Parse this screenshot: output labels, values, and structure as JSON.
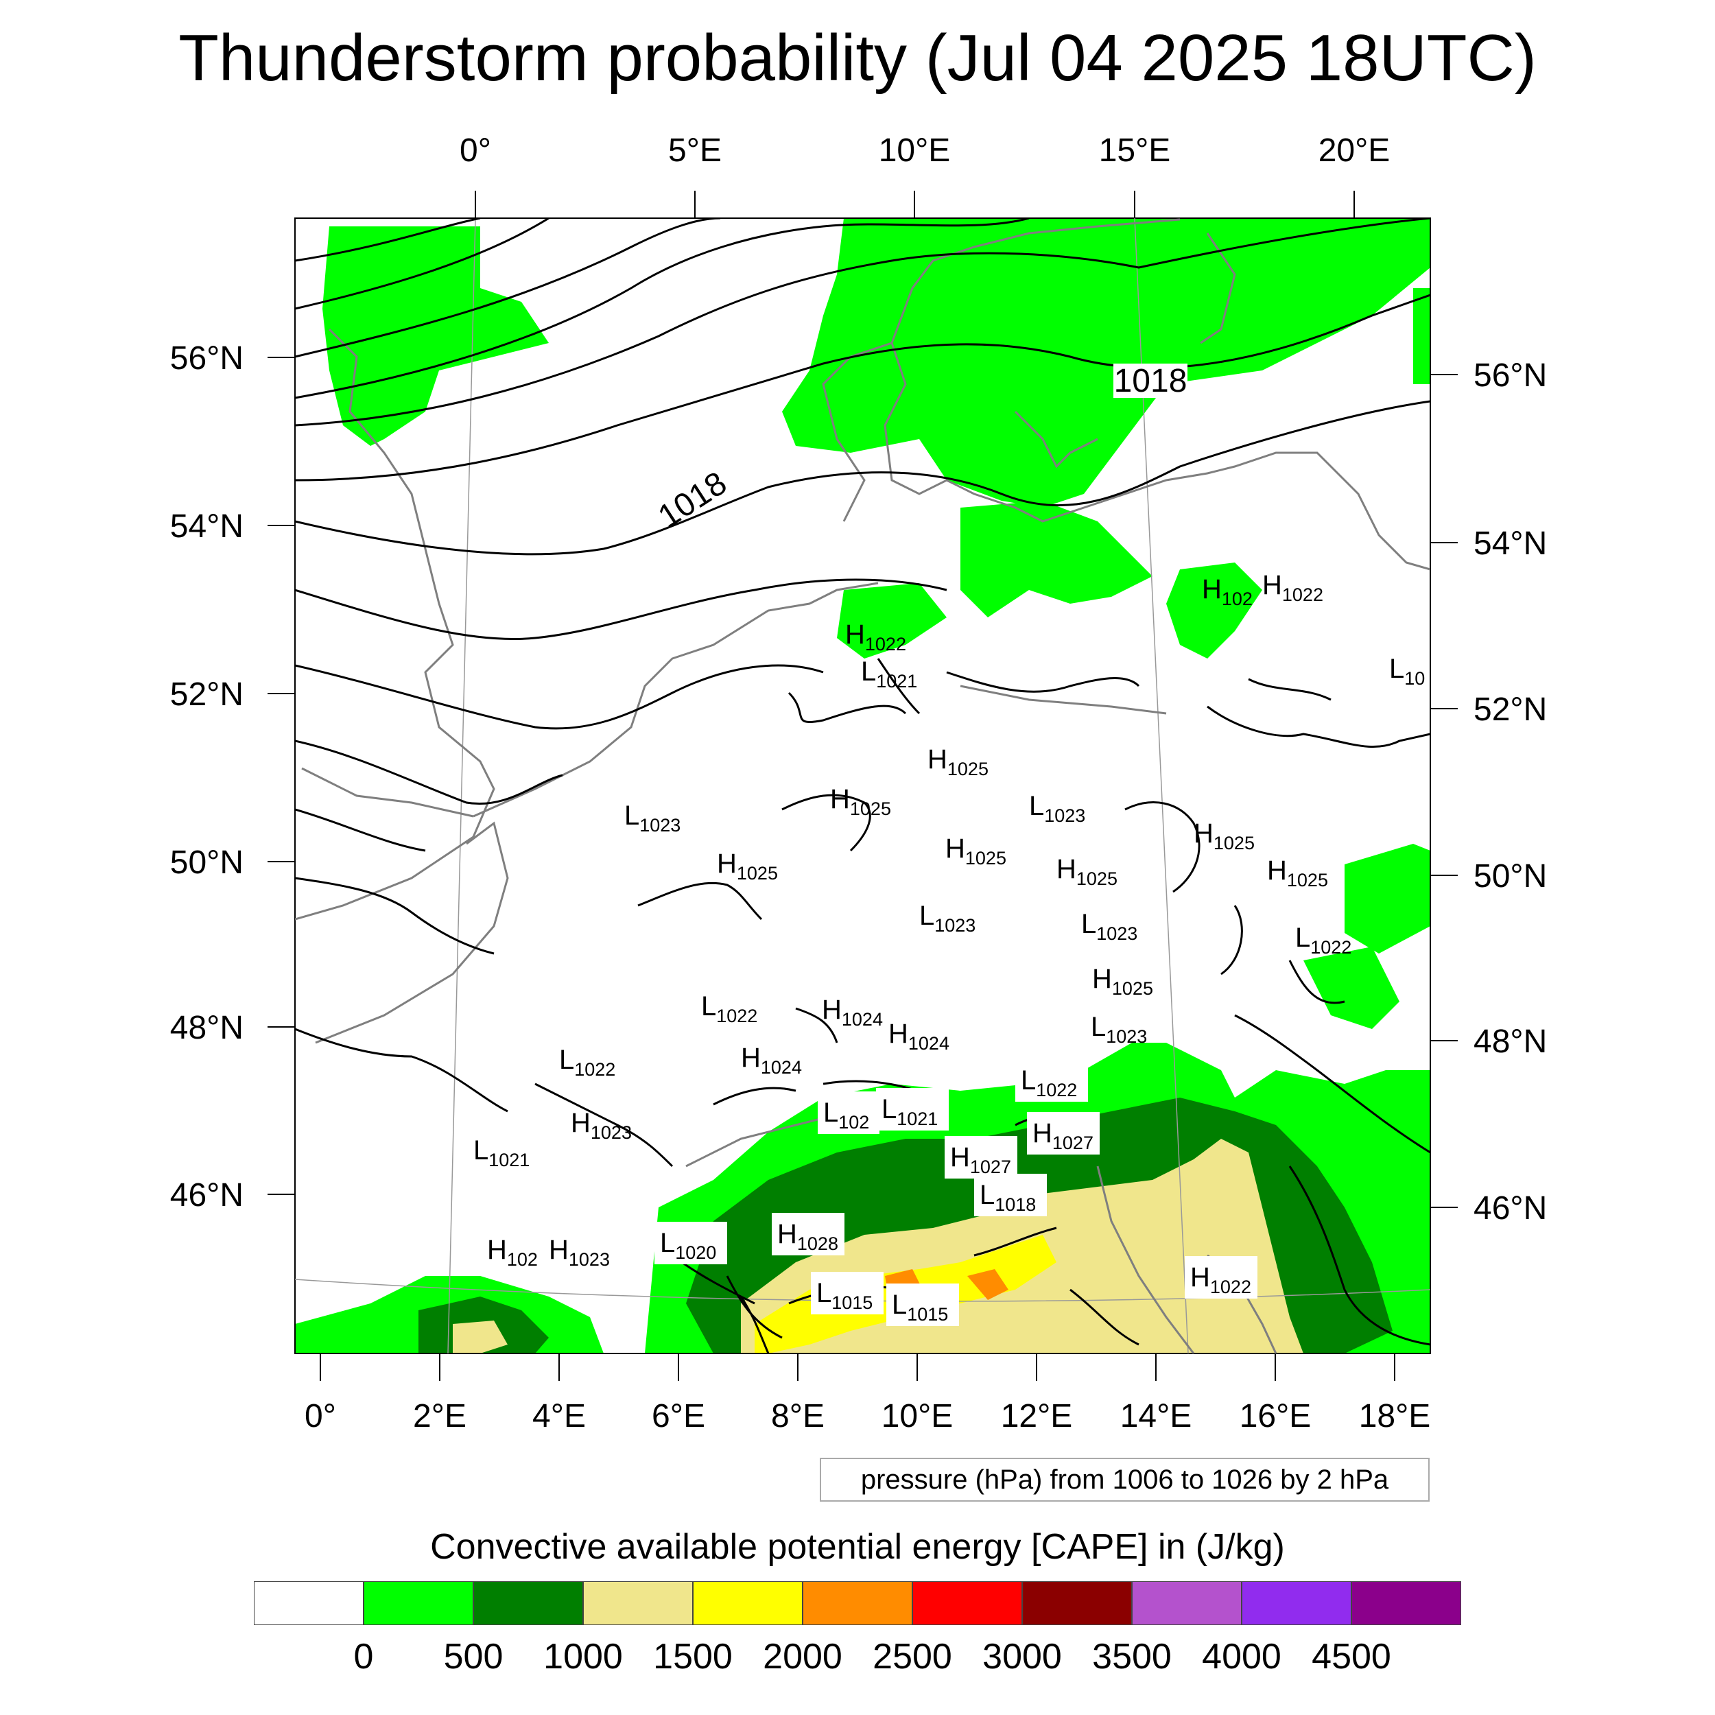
{
  "title": "Thunderstorm probability (Jul 04 2025 18UTC)",
  "map": {
    "projection": "lambert-conformal",
    "base_fill": "#ffffff",
    "top_lon_labels": [
      "0°",
      "5°E",
      "10°E",
      "15°E",
      "20°E"
    ],
    "bottom_lon_labels": [
      "0°",
      "2°E",
      "4°E",
      "6°E",
      "8°E",
      "10°E",
      "12°E",
      "14°E",
      "16°E",
      "18°E"
    ],
    "left_lat_labels": [
      "56°N",
      "54°N",
      "52°N",
      "50°N",
      "48°N",
      "46°N"
    ],
    "right_lat_labels": [
      "56°N",
      "54°N",
      "52°N",
      "50°N",
      "48°N",
      "46°N"
    ],
    "isobar_labels": [
      "1018",
      "1018"
    ],
    "pressure_centers": [
      {
        "type": "H",
        "value": "1022"
      },
      {
        "type": "L",
        "value": "1021"
      },
      {
        "type": "H",
        "value": "102"
      },
      {
        "type": "H",
        "value": "1022"
      },
      {
        "type": "L",
        "value": "10"
      },
      {
        "type": "H",
        "value": "1025"
      },
      {
        "type": "H",
        "value": "1025"
      },
      {
        "type": "L",
        "value": "1023"
      },
      {
        "type": "L",
        "value": "1023"
      },
      {
        "type": "H",
        "value": "1025"
      },
      {
        "type": "H",
        "value": "1025"
      },
      {
        "type": "H",
        "value": "1025"
      },
      {
        "type": "H",
        "value": "1025"
      },
      {
        "type": "H",
        "value": "1025"
      },
      {
        "type": "L",
        "value": "1023"
      },
      {
        "type": "L",
        "value": "1023"
      },
      {
        "type": "L",
        "value": "1022"
      },
      {
        "type": "H",
        "value": "1025"
      },
      {
        "type": "L",
        "value": "1022"
      },
      {
        "type": "H",
        "value": "1024"
      },
      {
        "type": "H",
        "value": "1024"
      },
      {
        "type": "L",
        "value": "1023"
      },
      {
        "type": "L",
        "value": "1022"
      },
      {
        "type": "H",
        "value": "1024"
      },
      {
        "type": "L",
        "value": "1022"
      },
      {
        "type": "L",
        "value": "102"
      },
      {
        "type": "L",
        "value": "1021"
      },
      {
        "type": "H",
        "value": "1023"
      },
      {
        "type": "H",
        "value": "1027"
      },
      {
        "type": "L",
        "value": "1021"
      },
      {
        "type": "H",
        "value": "1027"
      },
      {
        "type": "L",
        "value": "1018"
      },
      {
        "type": "H",
        "value": "102"
      },
      {
        "type": "H",
        "value": "1023"
      },
      {
        "type": "L",
        "value": "1020"
      },
      {
        "type": "H",
        "value": "1028"
      },
      {
        "type": "L",
        "value": "1015"
      },
      {
        "type": "L",
        "value": "1015"
      },
      {
        "type": "H",
        "value": "1022"
      }
    ]
  },
  "contour_note": "pressure (hPa) from 1006 to 1026 by 2 hPa",
  "colorbar": {
    "title": "Convective available potential energy [CAPE] in (J/kg)",
    "colors": [
      "#ffffff",
      "#00ff00",
      "#007f00",
      "#f0e68c",
      "#ffff00",
      "#ff8c00",
      "#ff0000",
      "#8b0000",
      "#b452cd",
      "#912cee",
      "#8b008b"
    ],
    "labels": [
      "0",
      "500",
      "1000",
      "1500",
      "2000",
      "2500",
      "3000",
      "3500",
      "4000",
      "4500"
    ]
  }
}
